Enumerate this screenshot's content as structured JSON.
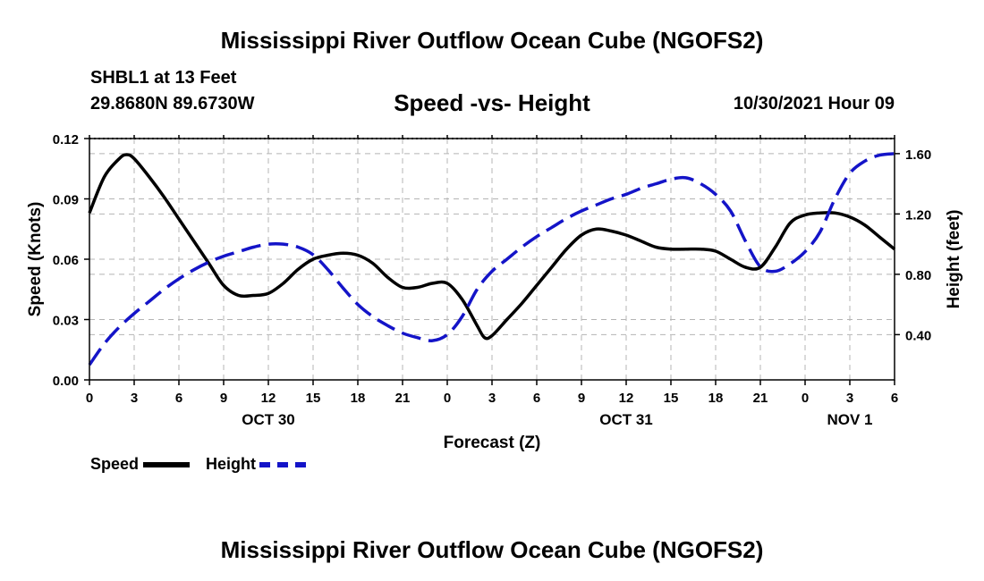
{
  "title": "Mississippi River Outflow Ocean Cube (NGOFS2)",
  "title_repeat": "Mississippi River Outflow Ocean Cube (NGOFS2)",
  "station": "SHBL1 at 13 Feet",
  "coordinates": "29.8680N  89.6730W",
  "subtitle": "Speed -vs- Height",
  "datetime": "10/30/2021 Hour 09",
  "legend": {
    "speed": "Speed",
    "height": "Height"
  },
  "colors": {
    "speed": "#000000",
    "height": "#1414c8",
    "grid": "#b4b4b4"
  },
  "chart_data": {
    "type": "line",
    "title": "Speed -vs- Height",
    "xlabel": "Forecast (Z)",
    "ylabel": "Speed (Knots)",
    "y2label": "Height (feet)",
    "xlim": [
      0,
      54
    ],
    "ylim": [
      0,
      0.12
    ],
    "y2lim": [
      0.1,
      1.7
    ],
    "x_ticks": [
      0,
      3,
      6,
      9,
      12,
      15,
      18,
      21,
      24,
      27,
      30,
      33,
      36,
      39,
      42,
      45,
      48,
      51,
      54
    ],
    "x_tick_labels": [
      "0",
      "3",
      "6",
      "9",
      "12",
      "15",
      "18",
      "21",
      "0",
      "3",
      "6",
      "9",
      "12",
      "15",
      "18",
      "21",
      "0",
      "3",
      "6"
    ],
    "date_labels": [
      {
        "x": 12,
        "label": "OCT 30"
      },
      {
        "x": 36,
        "label": "OCT 31"
      },
      {
        "x": 51,
        "label": "NOV 1"
      }
    ],
    "y_ticks": [
      0,
      0.03,
      0.06,
      0.09,
      0.12
    ],
    "y_tick_labels": [
      "0.00",
      "0.03",
      "0.06",
      "0.09",
      "0.12"
    ],
    "y2_ticks": [
      0.4,
      0.8,
      1.2,
      1.6
    ],
    "y2_tick_labels": [
      "0.40",
      "0.80",
      "1.20",
      "1.60"
    ],
    "grid": true,
    "series": [
      {
        "name": "Speed",
        "axis": "left",
        "style": "solid",
        "x": [
          0,
          1,
          2,
          2.5,
          3,
          4,
          5,
          6,
          7,
          8,
          9,
          10,
          11,
          12,
          13,
          14,
          15,
          16,
          17,
          18,
          19,
          20,
          21,
          22,
          23,
          24,
          25,
          26,
          26.5,
          27,
          28,
          29,
          30,
          31,
          32,
          33,
          34,
          35,
          36,
          37,
          38,
          39,
          40,
          41,
          42,
          43,
          44,
          45,
          46,
          47,
          48,
          49,
          50,
          51,
          52,
          53,
          54
        ],
        "values": [
          0.083,
          0.101,
          0.11,
          0.112,
          0.11,
          0.101,
          0.091,
          0.08,
          0.069,
          0.058,
          0.047,
          0.042,
          0.042,
          0.043,
          0.048,
          0.055,
          0.06,
          0.062,
          0.063,
          0.062,
          0.058,
          0.051,
          0.046,
          0.046,
          0.048,
          0.048,
          0.04,
          0.027,
          0.021,
          0.022,
          0.03,
          0.038,
          0.047,
          0.056,
          0.065,
          0.072,
          0.075,
          0.074,
          0.072,
          0.069,
          0.066,
          0.065,
          0.065,
          0.065,
          0.064,
          0.06,
          0.056,
          0.056,
          0.066,
          0.078,
          0.082,
          0.083,
          0.083,
          0.081,
          0.077,
          0.071,
          0.065
        ]
      },
      {
        "name": "Height",
        "axis": "right",
        "style": "dashed",
        "x": [
          0,
          1,
          2,
          3,
          4,
          5,
          6,
          7,
          8,
          9,
          10,
          11,
          12,
          13,
          14,
          15,
          16,
          17,
          18,
          19,
          20,
          21,
          22,
          23,
          24,
          25,
          26,
          27,
          28,
          29,
          30,
          31,
          32,
          33,
          34,
          35,
          36,
          37,
          38,
          39,
          40,
          41,
          42,
          43,
          44,
          45,
          46,
          47,
          48,
          49,
          50,
          51,
          52,
          53,
          54
        ],
        "values": [
          0.2,
          0.34,
          0.45,
          0.54,
          0.62,
          0.7,
          0.77,
          0.83,
          0.88,
          0.92,
          0.95,
          0.98,
          1.0,
          1.0,
          0.98,
          0.93,
          0.83,
          0.71,
          0.6,
          0.52,
          0.46,
          0.41,
          0.38,
          0.36,
          0.4,
          0.52,
          0.7,
          0.82,
          0.9,
          0.98,
          1.05,
          1.11,
          1.17,
          1.22,
          1.26,
          1.3,
          1.33,
          1.37,
          1.4,
          1.43,
          1.44,
          1.4,
          1.33,
          1.22,
          1.02,
          0.85,
          0.82,
          0.87,
          0.95,
          1.08,
          1.3,
          1.47,
          1.55,
          1.59,
          1.6
        ]
      }
    ]
  }
}
